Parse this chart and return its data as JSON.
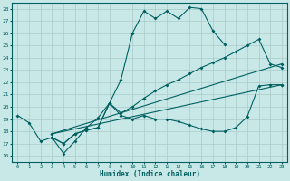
{
  "xlabel": "Humidex (Indice chaleur)",
  "bg_color": "#c8e8e8",
  "line_color": "#006060",
  "grid_color": "#aacaca",
  "xlim": [
    -0.5,
    23.5
  ],
  "ylim": [
    15.5,
    28.5
  ],
  "series": [
    {
      "x": [
        0,
        1,
        2,
        3,
        4,
        5,
        6,
        7,
        8,
        9,
        10,
        11,
        12,
        13,
        14,
        15,
        16,
        17,
        18
      ],
      "y": [
        19.3,
        18.7,
        17.2,
        17.5,
        16.2,
        17.2,
        18.3,
        19.1,
        20.3,
        22.2,
        26.0,
        27.8,
        27.2,
        27.8,
        27.2,
        28.1,
        28.0,
        26.2,
        25.1
      ]
    },
    {
      "x": [
        3,
        4,
        5,
        6,
        7,
        8,
        9,
        10,
        11,
        12,
        13,
        14,
        15,
        16,
        17,
        18,
        19,
        20,
        21,
        22,
        23
      ],
      "y": [
        17.5,
        17.0,
        17.8,
        18.1,
        18.3,
        20.3,
        19.3,
        19.0,
        19.3,
        19.0,
        19.0,
        18.8,
        18.5,
        18.2,
        18.0,
        18.0,
        18.3,
        19.2,
        21.7,
        21.8,
        21.8
      ]
    },
    {
      "x": [
        3,
        4,
        5,
        6,
        7,
        8,
        9,
        10,
        11,
        12,
        13,
        14,
        15,
        16,
        17,
        18,
        19,
        20,
        21,
        22,
        23
      ],
      "y": [
        17.5,
        17.0,
        17.8,
        18.1,
        18.3,
        20.3,
        19.5,
        20.0,
        20.7,
        21.3,
        21.8,
        22.2,
        22.7,
        23.2,
        23.6,
        24.0,
        24.5,
        25.0,
        25.5,
        23.5,
        23.2
      ]
    },
    {
      "x": [
        3,
        23
      ],
      "y": [
        17.8,
        21.8
      ]
    },
    {
      "x": [
        3,
        23
      ],
      "y": [
        17.8,
        23.5
      ]
    }
  ]
}
